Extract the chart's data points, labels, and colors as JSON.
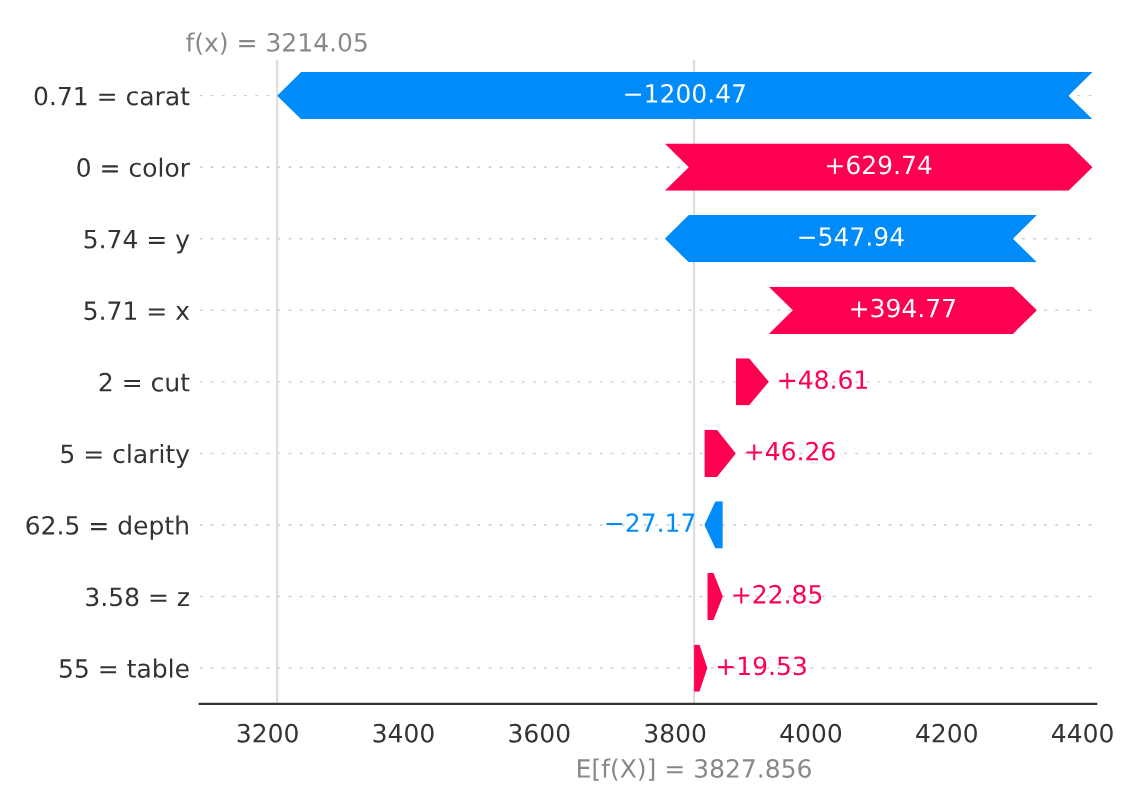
{
  "chart_data": {
    "type": "bar",
    "orientation": "horizontal",
    "categories": [
      "0.71 = carat",
      "0 = color",
      "5.74 = y",
      "5.71 = x",
      "2 = cut",
      "5 = clarity",
      "62.5 = depth",
      "3.58 = z",
      "55 = table"
    ],
    "values": [
      -1200.47,
      629.74,
      -547.94,
      394.77,
      48.61,
      46.26,
      -27.17,
      22.85,
      19.53
    ],
    "base": [
      4414.52,
      3784.78,
      4332.72,
      3937.95,
      3889.34,
      3843.08,
      3870.25,
      3847.4,
      3827.87
    ],
    "colors": [
      "#008bfb",
      "#ff0051",
      "#008bfb",
      "#ff0051",
      "#ff0051",
      "#ff0051",
      "#008bfb",
      "#ff0051",
      "#ff0051"
    ],
    "value_labels": [
      "−1200.47",
      "+629.74",
      "−547.94",
      "+394.77",
      "+48.61",
      "+46.26",
      "−27.17",
      "+22.85",
      "+19.53"
    ],
    "xlim": [
      3100,
      4420
    ],
    "xticks": [
      3200,
      3400,
      3600,
      3800,
      4000,
      4200,
      4400
    ],
    "grid": "y",
    "ref_lines": [
      {
        "axis": "x",
        "value": 3214.05,
        "color": "#dddddd",
        "label": "f(x) = 3214.05"
      },
      {
        "axis": "x",
        "value": 3827.856,
        "color": "#dddddd",
        "label": "E[f(X)] = 3827.856"
      }
    ]
  }
}
